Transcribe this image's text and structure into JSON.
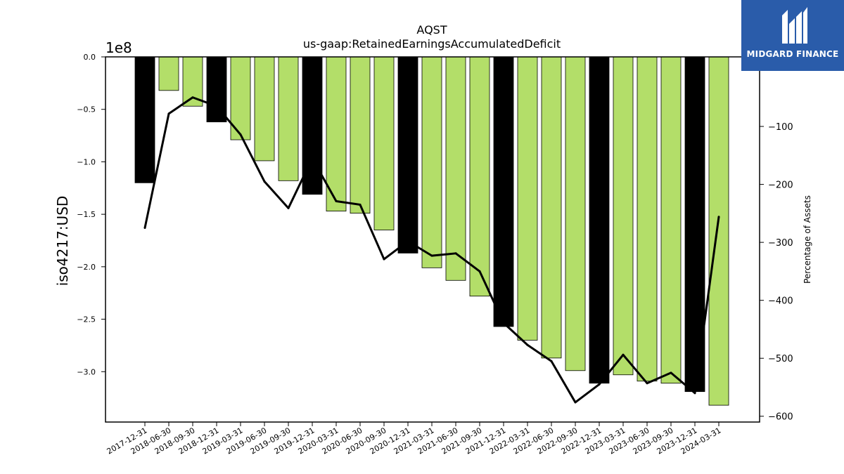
{
  "chart_data": {
    "type": "bar",
    "title": "AQST",
    "subtitle": "us-gaap:RetainedEarningsAccumulatedDeficit",
    "ylabel": "iso4217:USD",
    "y2label": "Percentage of Assets",
    "offset_label": "1e8",
    "ylim": [
      -3.48,
      0.0
    ],
    "y2lim": [
      -610,
      20
    ],
    "yticks": [
      "0.0",
      "−0.5",
      "−1.0",
      "−1.5",
      "−2.0",
      "−2.5",
      "−3.0"
    ],
    "y2ticks": [
      "−100",
      "−200",
      "−300",
      "−400",
      "−500",
      "−600"
    ],
    "categories": [
      "2017-12-31",
      "2018-06-30",
      "2018-09-30",
      "2018-12-31",
      "2019-03-31",
      "2019-06-30",
      "2019-09-30",
      "2019-12-31",
      "2020-03-31",
      "2020-06-30",
      "2020-09-30",
      "2020-12-31",
      "2021-03-31",
      "2021-06-30",
      "2021-09-30",
      "2021-12-31",
      "2022-03-31",
      "2022-06-30",
      "2022-09-30",
      "2022-12-31",
      "2023-03-31",
      "2023-06-30",
      "2023-09-30",
      "2023-12-31",
      "2024-03-31"
    ],
    "series": [
      {
        "values": [
          -1.2,
          -0.32,
          -0.47,
          -0.62,
          -0.79,
          -0.99,
          -1.18,
          -1.31,
          -1.47,
          -1.49,
          -1.65,
          -1.87,
          -2.01,
          -2.13,
          -2.28,
          -2.57,
          -2.7,
          -2.87,
          -2.99,
          -3.11,
          -3.03,
          -3.09,
          -3.11,
          -3.19,
          -3.32
        ],
        "colors": [
          "#000000",
          "#b3de69",
          "#b3de69",
          "#000000",
          "#b3de69",
          "#b3de69",
          "#b3de69",
          "#000000",
          "#b3de69",
          "#b3de69",
          "#b3de69",
          "#000000",
          "#b3de69",
          "#b3de69",
          "#b3de69",
          "#000000",
          "#b3de69",
          "#b3de69",
          "#b3de69",
          "#000000",
          "#b3de69",
          "#b3de69",
          "#b3de69",
          "#000000",
          "#b3de69"
        ]
      },
      {
        "type": "line",
        "axis": "right",
        "color": "#000000",
        "values": [
          -275,
          -78,
          -50,
          -65,
          -114,
          -195,
          -241,
          -155,
          -229,
          -235,
          -329,
          -298,
          -323,
          -319,
          -350,
          -439,
          -477,
          -505,
          -576,
          -545,
          -494,
          -543,
          -525,
          -560,
          -256
        ]
      }
    ]
  },
  "logo": {
    "text": "MIDGARD FINANCE"
  }
}
